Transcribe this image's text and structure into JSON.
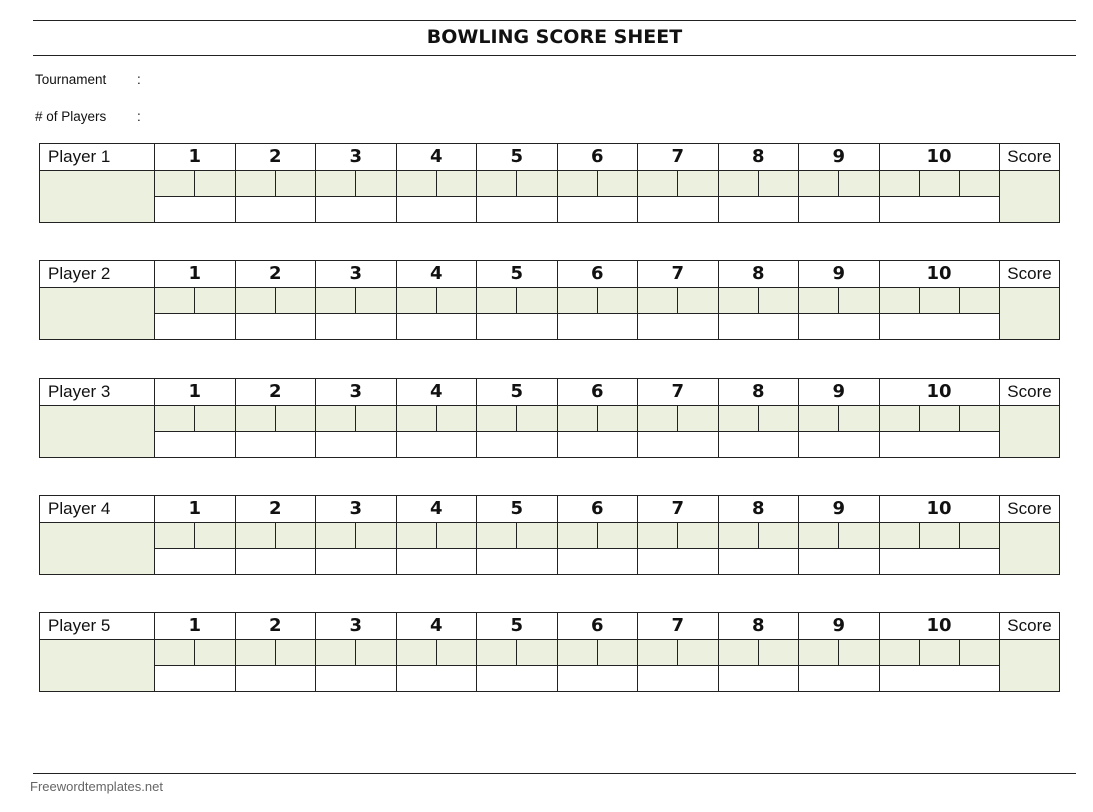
{
  "title": "BOWLING SCORE SHEET",
  "fields": [
    {
      "label": "Tournament",
      "sep": ":"
    },
    {
      "label": "# of Players",
      "sep": ":"
    }
  ],
  "players": [
    "Player 1",
    "Player 2",
    "Player 3",
    "Player 4",
    "Player 5"
  ],
  "frames": [
    "1",
    "2",
    "3",
    "4",
    "5",
    "6",
    "7",
    "8",
    "9",
    "10"
  ],
  "score_label": "Score",
  "footer": "Freewordtemplates.net",
  "colors": {
    "cell_fill": "#ebf1de",
    "border": "#222222"
  }
}
